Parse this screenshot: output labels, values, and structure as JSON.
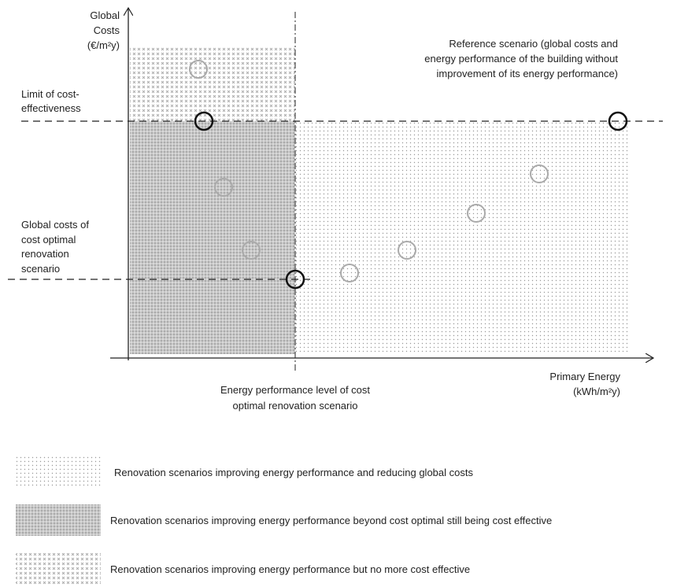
{
  "y_axis_label": [
    "Global",
    "Costs",
    "(€/m²y)"
  ],
  "x_axis_label": [
    "Primary Energy",
    "(kWh/m²y)"
  ],
  "reference_note": [
    "Reference scenario (global costs and",
    "energy performance of the building without",
    "improvement of its energy performance)"
  ],
  "limit_label": [
    "Limit of cost-",
    "effectiveness"
  ],
  "optimal_cost_label": [
    "Global costs of",
    "cost optimal",
    "renovation",
    "scenario"
  ],
  "optimal_energy_label": [
    "Energy performance level of cost",
    "optimal renovation scenario"
  ],
  "legend": [
    "Renovation scenarios improving energy performance and reducing global costs",
    "Renovation scenarios improving energy performance beyond cost optimal still being cost effective",
    "Renovation scenarios improving energy performance but no more cost effective"
  ]
}
